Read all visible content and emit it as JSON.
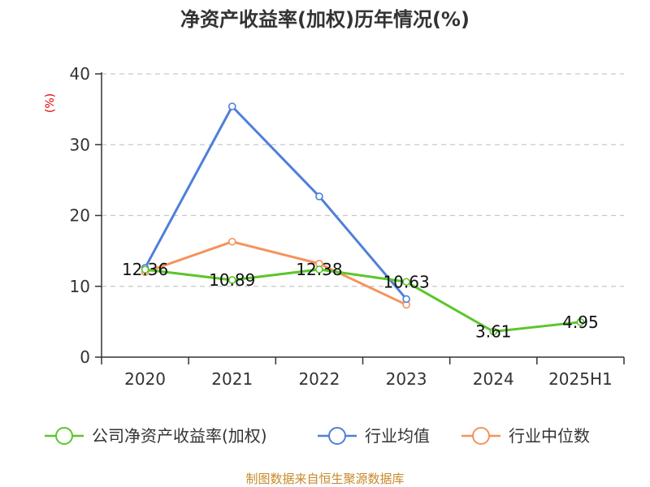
{
  "chart_data": {
    "type": "line",
    "title": "净资产收益率(加权)历年情况(%)",
    "y_unit": "(%)",
    "categories": [
      "2020",
      "2021",
      "2022",
      "2023",
      "2024",
      "2025H1"
    ],
    "ylim": [
      0,
      40
    ],
    "yticks": [
      0,
      10,
      20,
      30,
      40
    ],
    "grid": true,
    "legend_position": "bottom",
    "series": [
      {
        "name": "公司净资产收益率(加权)",
        "color": "#5cc62b",
        "values": [
          12.36,
          10.89,
          12.38,
          10.63,
          3.61,
          4.95
        ],
        "labels": [
          "12.36",
          "10.89",
          "12.38",
          "10.63",
          "3.61",
          "4.95"
        ]
      },
      {
        "name": "行业均值",
        "color": "#4f7fda",
        "values": [
          12.6,
          35.4,
          22.7,
          8.2,
          null,
          null
        ]
      },
      {
        "name": "行业中位数",
        "color": "#f5935a",
        "values": [
          12.0,
          16.3,
          13.2,
          7.4,
          null,
          null
        ]
      }
    ],
    "source": "制图数据来自恒生聚源数据库"
  }
}
